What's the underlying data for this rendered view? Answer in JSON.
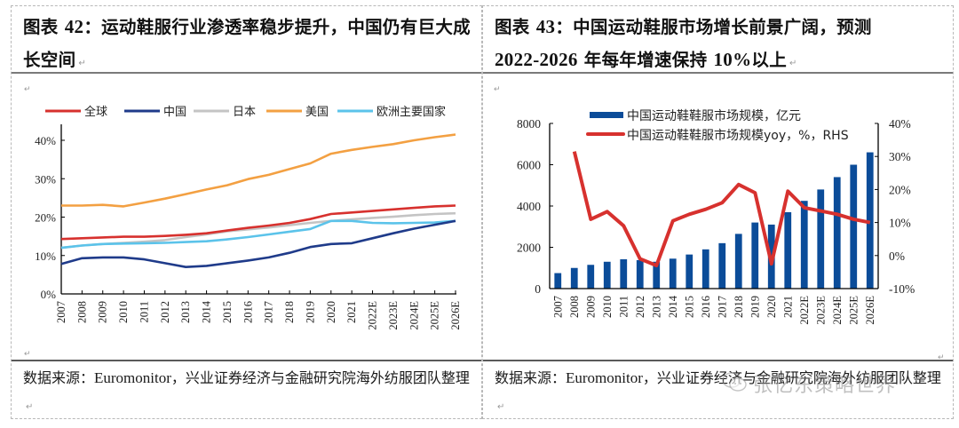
{
  "left": {
    "title_prefix": "图表 ",
    "title_num": "42",
    "title_text": "：运动鞋服行业渗透率稳步提升，中国仍有巨大成长空间",
    "source_prefix": "数据来源：",
    "source_latin": "Euromonitor",
    "source_text": "，兴业证券经济与金融研究院海外纺服团队整理"
  },
  "right": {
    "title_prefix": "图表 ",
    "title_num": "43",
    "title_text": "：中国运动鞋服市场增长前景广阔，预测",
    "title_line2_num": "2022-2026",
    "title_line2_text": " 年每年增速保持 ",
    "title_line2_pct": "10%",
    "title_line2_end": "以上",
    "source_prefix": "数据来源：",
    "source_latin": "Euromonitor",
    "source_text": "，兴业证券经济与金融研究院海外纺服团队整理"
  },
  "paragraph_mark": "↵",
  "watermark": "张忆东策略世界",
  "chart_data": [
    {
      "type": "line",
      "title": "运动鞋服行业渗透率",
      "xlabel": "",
      "ylabel": "",
      "ylim": [
        0,
        40
      ],
      "yticks": [
        "0%",
        "10%",
        "20%",
        "30%",
        "40%"
      ],
      "ytick_values": [
        0,
        10,
        20,
        30,
        40
      ],
      "legend_position": "top",
      "grid": false,
      "x": [
        "2007",
        "2008",
        "2009",
        "2010",
        "2011",
        "2012",
        "2013",
        "2014",
        "2015",
        "2016",
        "2017",
        "2018",
        "2019",
        "2020",
        "2021",
        "2022E",
        "2023E",
        "2024E",
        "2025E",
        "2026E"
      ],
      "series": [
        {
          "name": "全球",
          "color": "#d7312e",
          "values": [
            14.3,
            14.5,
            14.7,
            14.9,
            14.9,
            15.1,
            15.4,
            15.8,
            16.5,
            17.2,
            17.8,
            18.5,
            19.5,
            20.8,
            21.2,
            21.6,
            22.0,
            22.4,
            22.8,
            23.0
          ]
        },
        {
          "name": "中国",
          "color": "#1f3b8a",
          "values": [
            7.8,
            9.3,
            9.5,
            9.5,
            9.0,
            8.0,
            7.0,
            7.3,
            8.0,
            8.7,
            9.5,
            10.7,
            12.2,
            13.0,
            13.2,
            14.5,
            15.8,
            17.0,
            18.0,
            19.0
          ]
        },
        {
          "name": "日本",
          "color": "#c4c4c4",
          "values": [
            12.0,
            12.6,
            13.0,
            13.3,
            13.6,
            14.0,
            14.8,
            15.5,
            16.3,
            16.8,
            17.3,
            17.9,
            18.5,
            19.0,
            19.4,
            19.8,
            20.1,
            20.5,
            20.8,
            21.0
          ]
        },
        {
          "name": "美国",
          "color": "#f3a042",
          "values": [
            23.0,
            23.0,
            23.2,
            22.8,
            23.8,
            24.8,
            26.0,
            27.2,
            28.3,
            29.9,
            31.0,
            32.5,
            34.0,
            36.5,
            37.5,
            38.3,
            39.0,
            40.0,
            40.8,
            41.5
          ]
        },
        {
          "name": "欧洲主要国家",
          "color": "#5bc3ea",
          "values": [
            12.0,
            12.6,
            13.0,
            13.1,
            13.2,
            13.3,
            13.5,
            13.7,
            14.2,
            14.8,
            15.5,
            16.2,
            16.9,
            19.0,
            19.0,
            18.5,
            18.4,
            18.5,
            18.6,
            19.0
          ]
        }
      ]
    },
    {
      "type": "bar",
      "title": "中国运动鞋服市场规模",
      "xlabel": "",
      "ylabel": "",
      "ylim": [
        0,
        8000
      ],
      "yticks": [
        "0",
        "2000",
        "4000",
        "6000",
        "8000"
      ],
      "ytick_values": [
        0,
        2000,
        4000,
        6000,
        8000
      ],
      "y2lim": [
        -10,
        40
      ],
      "y2ticks": [
        "-10%",
        "0%",
        "10%",
        "20%",
        "30%",
        "40%"
      ],
      "y2tick_values": [
        -10,
        0,
        10,
        20,
        30,
        40
      ],
      "legend_position": "top",
      "grid": false,
      "categories": [
        "2007",
        "2008",
        "2009",
        "2010",
        "2011",
        "2012",
        "2013",
        "2014",
        "2015",
        "2016",
        "2017",
        "2018",
        "2019",
        "2020",
        "2021",
        "2022E",
        "2023E",
        "2024E",
        "2025E",
        "2026E"
      ],
      "series": [
        {
          "name": "中国运动鞋鞋服市场规模，亿元",
          "type": "bar",
          "axis": "left",
          "color": "#0b4c99",
          "values": [
            750,
            1000,
            1150,
            1300,
            1420,
            1380,
            1300,
            1450,
            1650,
            1900,
            2200,
            2650,
            3200,
            3100,
            3700,
            4250,
            4800,
            5400,
            6000,
            6600
          ]
        },
        {
          "name": "中国运动鞋鞋服市场规模yoy，%，RHS",
          "type": "line",
          "axis": "right",
          "color": "#d7312e",
          "values": [
            null,
            31.5,
            11.0,
            13.3,
            9.0,
            -1.0,
            -3.0,
            10.5,
            12.5,
            14.0,
            16.0,
            21.5,
            19.0,
            -2.5,
            19.5,
            14.5,
            13.5,
            12.5,
            11.0,
            10.0
          ]
        }
      ]
    }
  ]
}
